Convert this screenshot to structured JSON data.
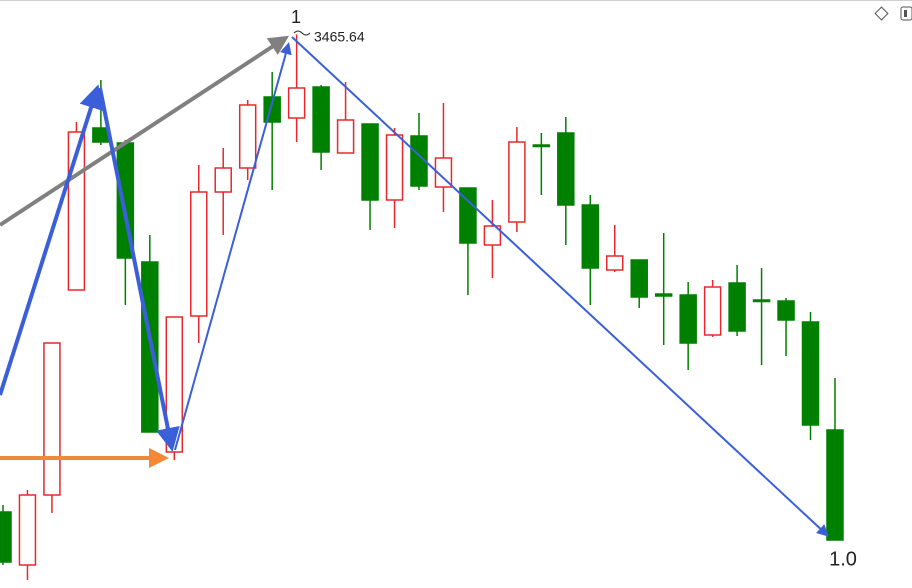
{
  "chart_data": {
    "type": "candlestick",
    "open": [
      2988,
      2935,
      3005,
      3210,
      3372,
      3357,
      3238,
      3048,
      3184,
      3308,
      3332,
      3403,
      3382,
      3413,
      3347,
      3376,
      3300,
      3364,
      3313,
      3312,
      3255,
      3278,
      3355,
      3367,
      3295,
      3230,
      3240,
      3206,
      3205,
      3165,
      3217,
      3200,
      3199,
      3178,
      3070
    ],
    "high": [
      2995,
      3010,
      3157,
      3378,
      3420,
      3360,
      3265,
      3183,
      3335,
      3352,
      3400,
      3428,
      3465.64,
      3415,
      3418,
      3376,
      3372,
      3387,
      3397,
      3312,
      3300,
      3373,
      3367,
      3383,
      3305,
      3275,
      3240,
      3267,
      3218,
      3220,
      3235,
      3232,
      3202,
      3188,
      3122
    ],
    "low": [
      2935,
      2920,
      2987,
      3210,
      3355,
      3195,
      3068,
      3040,
      3157,
      3265,
      3320,
      3310,
      3358,
      3330,
      3347,
      3270,
      3272,
      3310,
      3288,
      3205,
      3222,
      3268,
      3305,
      3255,
      3195,
      3228,
      3192,
      3155,
      3130,
      3163,
      3164,
      3135,
      3144,
      3060,
      2960
    ],
    "close": [
      2938,
      3005,
      3157,
      3368,
      3358,
      3242,
      3068,
      3183,
      3308,
      3332,
      3395,
      3378,
      3412,
      3348,
      3380,
      3300,
      3365,
      3314,
      3342,
      3257,
      3274,
      3358,
      3354,
      3295,
      3232,
      3244,
      3203,
      3204,
      3157,
      3213,
      3169,
      3199,
      3180,
      3075,
      2960
    ],
    "up_color": "#e8282d",
    "down_color": "#008000",
    "ylim": [
      2912,
      3500
    ],
    "annotations": [
      "1",
      "1.0"
    ]
  }
}
